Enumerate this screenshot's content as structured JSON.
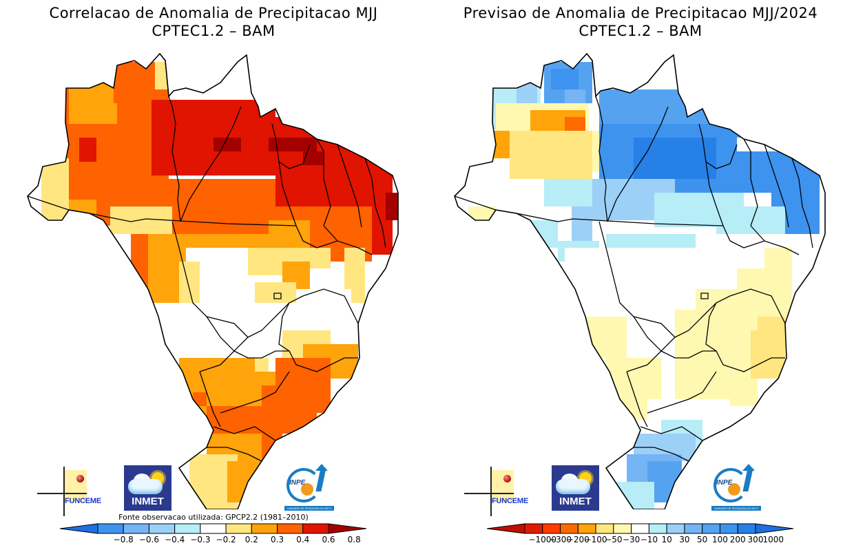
{
  "panels": [
    {
      "id": "left",
      "title_line1": "Correlacao de Anomalia de Precipitacao MJJ",
      "title_line2": "CPTEC1.2 – BAM",
      "source_note": "Fonte observacao utilizada: GPCP2.2 (1981–2010)",
      "variable": "correlation",
      "colorbar": {
        "labels": [
          "−0.8",
          "−0.6",
          "−0.4",
          "−0.3",
          "−0.2",
          "0.2",
          "0.3",
          "0.4",
          "0.6",
          "0.8"
        ],
        "colors": [
          "#1e6fe0",
          "#3d93ee",
          "#75b5f5",
          "#9dd0f7",
          "#b6edf7",
          "#ffffff",
          "#ffe680",
          "#ffa40a",
          "#ff6200",
          "#e01400",
          "#a50000"
        ]
      },
      "regions": {
        "north_amazon_west": "0.4-0.6",
        "north_central_para": "0.6-0.8",
        "northeast_coast": "0.6-0.8",
        "center_west": "-0.2-0.2",
        "southeast_sao_paulo_minas": "0.4-0.6",
        "south_rio_grande": "0.2-0.3",
        "mato_grosso_do_sul": "0.3-0.4"
      }
    },
    {
      "id": "right",
      "title_line1": "Previsao de Anomalia de Precipitacao MJJ/2024",
      "title_line2": "CPTEC1.2 – BAM",
      "variable": "precipitation_anomaly_mm",
      "colorbar": {
        "labels": [
          "−1000",
          "−300",
          "−200",
          "−100",
          "−50",
          "−30",
          "−10",
          "10",
          "30",
          "50",
          "100",
          "200",
          "300",
          "1000"
        ],
        "colors": [
          "#c01000",
          "#e01c00",
          "#ff3c00",
          "#ff6a00",
          "#ffa40a",
          "#ffe680",
          "#fff8b0",
          "#ffffff",
          "#b6edf7",
          "#9dd0f7",
          "#75b5f5",
          "#55a3f0",
          "#3d93ee",
          "#2680e6",
          "#1e6fe0"
        ]
      },
      "regions": {
        "roraima_amapa": "100 to 300",
        "north_para_maranhao": "50 to 200",
        "amazonas_west": "-50 to -10",
        "center_west": "-10 to 10",
        "goias_minas_bahia": "-30 to -10",
        "espirito_santo_coast": "-50 to -30",
        "south_rio_grande": "30 to 100"
      }
    }
  ],
  "logos": {
    "funceme": "FUNCEME",
    "inmet": "INMET",
    "inpe": "INPE",
    "inpe_band": "UNIDADE DE PESQUISA DO MCTI"
  }
}
